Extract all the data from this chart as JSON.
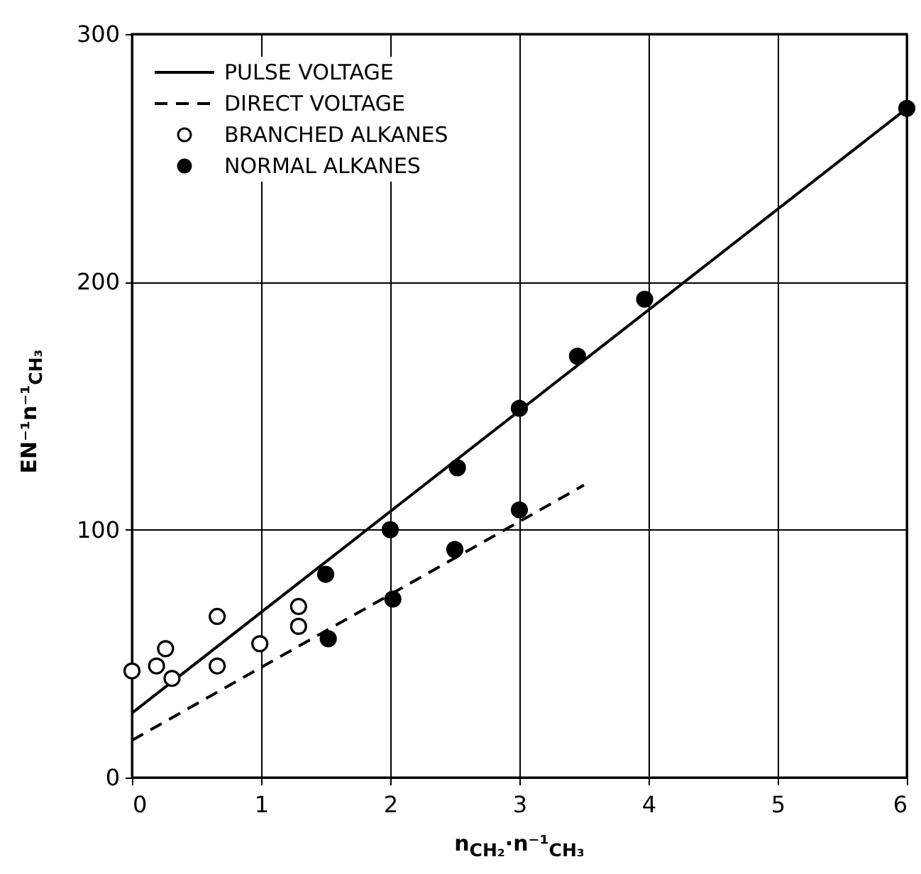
{
  "chart_data": {
    "type": "scatter",
    "xlabel": "n$_{CH₂}$·n⁻¹$_{CH₃}$",
    "ylabel": "EN⁻¹n⁻¹$_{CH₃}$",
    "xlim": [
      0,
      6
    ],
    "xticks": [
      0,
      1,
      2,
      3,
      4,
      5,
      6
    ],
    "ylim": [
      0,
      300
    ],
    "yticks": [
      0,
      100,
      200,
      300
    ],
    "grid": true,
    "legend": "top left",
    "series": [
      {
        "name": "PULSE VOLTAGE",
        "type": "line",
        "line_style": "solid",
        "color": "#000000",
        "x": [
          0,
          6
        ],
        "values": [
          26,
          270
        ]
      },
      {
        "name": "DIRECT VOLTAGE",
        "type": "line",
        "line_style": "dashed",
        "color": "#000000",
        "x": [
          0,
          3.5
        ],
        "values": [
          15,
          118
        ]
      },
      {
        "name": "BRANCHED ALKANES",
        "marker": "circle",
        "color": "#ffffff",
        "x": [
          0,
          0.19,
          0.26,
          0.31,
          0.66,
          0.66,
          0.99,
          1.29,
          1.29
        ],
        "values": [
          43,
          45,
          52,
          40,
          65,
          45,
          54,
          69,
          61
        ]
      },
      {
        "name": "NORMAL ALKANES",
        "marker": "circle",
        "color": "#000000",
        "x": [
          1.5,
          1.52,
          2,
          2.02,
          2.52,
          2.5,
          3,
          3,
          3.45,
          3.97,
          6
        ],
        "values": [
          82,
          56,
          100,
          72,
          125,
          92,
          149,
          108,
          170,
          193,
          270
        ]
      }
    ]
  }
}
